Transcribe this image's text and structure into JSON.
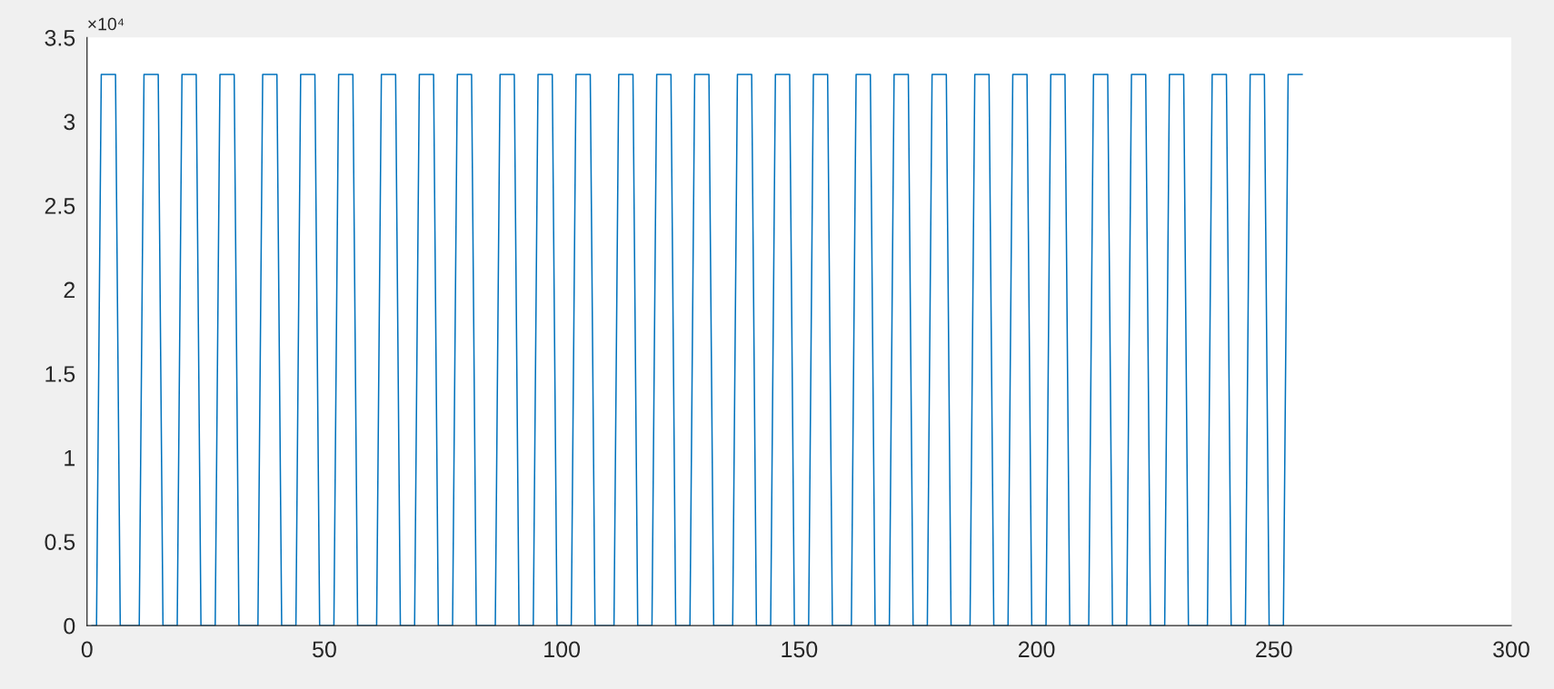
{
  "chart_data": {
    "type": "line",
    "x": [
      1,
      2,
      3,
      6,
      7,
      11,
      12,
      15,
      16,
      19,
      20,
      23,
      24,
      27,
      28,
      31,
      32,
      36,
      37,
      40,
      41,
      44,
      45,
      48,
      49,
      52,
      53,
      56,
      57,
      61,
      62,
      65,
      66,
      69,
      70,
      73,
      74,
      77,
      78,
      81,
      82,
      86,
      87,
      90,
      91,
      94,
      95,
      98,
      99,
      102,
      103,
      106,
      107,
      111,
      112,
      115,
      116,
      119,
      120,
      123,
      124,
      127,
      128,
      131,
      132,
      136,
      137,
      140,
      141,
      144,
      145,
      148,
      149,
      152,
      153,
      156,
      157,
      161,
      162,
      165,
      166,
      169,
      170,
      173,
      174,
      177,
      178,
      181,
      182,
      186,
      187,
      190,
      191,
      194,
      195,
      198,
      199,
      202,
      203,
      206,
      207,
      211,
      212,
      215,
      216,
      219,
      220,
      223,
      224,
      227,
      228,
      231,
      232,
      236,
      237,
      240,
      241,
      244,
      245,
      248,
      249,
      252,
      253,
      256
    ],
    "values": [
      0,
      0,
      3.28,
      3.28,
      0,
      0,
      3.28,
      3.28,
      0,
      0,
      3.28,
      3.28,
      0,
      0,
      3.28,
      3.28,
      0,
      0,
      3.28,
      3.28,
      0,
      0,
      3.28,
      3.28,
      0,
      0,
      3.28,
      3.28,
      0,
      0,
      3.28,
      3.28,
      0,
      0,
      3.28,
      3.28,
      0,
      0,
      3.28,
      3.28,
      0,
      0,
      3.28,
      3.28,
      0,
      0,
      3.28,
      3.28,
      0,
      0,
      3.28,
      3.28,
      0,
      0,
      3.28,
      3.28,
      0,
      0,
      3.28,
      3.28,
      0,
      0,
      3.28,
      3.28,
      0,
      0,
      3.28,
      3.28,
      0,
      0,
      3.28,
      3.28,
      0,
      0,
      3.28,
      3.28,
      0,
      0,
      3.28,
      3.28,
      0,
      0,
      3.28,
      3.28,
      0,
      0,
      3.28,
      3.28,
      0,
      0,
      3.28,
      3.28,
      0,
      0,
      3.28,
      3.28,
      0,
      0,
      3.28,
      3.28,
      0,
      0,
      3.28,
      3.28,
      0,
      0,
      3.28,
      3.28,
      0,
      0,
      3.28,
      3.28,
      0,
      0,
      3.28,
      3.28,
      0,
      0,
      3.28,
      3.28,
      0,
      0,
      3.28,
      3.28
    ],
    "color": "#0072bd",
    "line_style": "solid",
    "xlim": [
      0,
      300
    ],
    "xticks": [
      0,
      50,
      100,
      150,
      200,
      250,
      300
    ],
    "ylim": [
      0,
      3.5
    ],
    "yticks": [
      0,
      0.5,
      1,
      1.5,
      2,
      2.5,
      3,
      3.5
    ],
    "annotations": [
      "×10⁴"
    ]
  }
}
